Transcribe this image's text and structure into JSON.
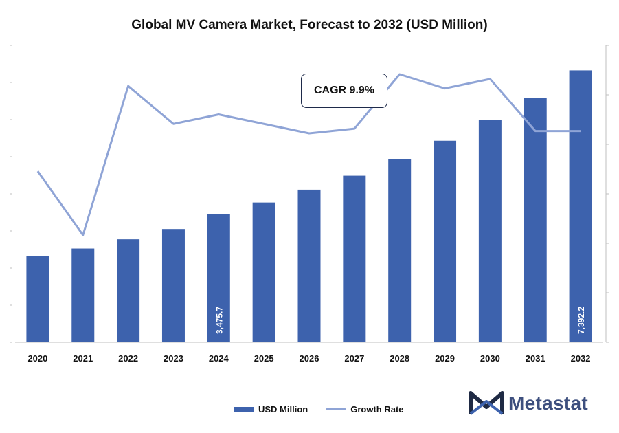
{
  "title": "Global MV Camera Market, Forecast to 2032 (USD Million)",
  "cagr_label": "CAGR 9.9%",
  "logo_text": "Metastat",
  "colors": {
    "bar": "#3d62ad",
    "line": "#8fa4d6",
    "axis": "#bfbfbf",
    "bar_label": "#ffffff"
  },
  "chart_data": {
    "type": "bar",
    "categories": [
      "2020",
      "2021",
      "2022",
      "2023",
      "2024",
      "2025",
      "2026",
      "2027",
      "2028",
      "2029",
      "2030",
      "2031",
      "2032"
    ],
    "ylim": [
      0,
      7400
    ],
    "series": [
      {
        "name": "USD Million",
        "type": "bar",
        "values": [
          2350,
          2550,
          2800,
          3080,
          3475.7,
          3800,
          4150,
          4530,
          4980,
          5480,
          6050,
          6650,
          7392.2
        ]
      },
      {
        "name": "Growth Rate",
        "type": "line",
        "values": [
          7.2,
          4.5,
          10.8,
          9.2,
          9.6,
          9.2,
          8.8,
          9.0,
          11.3,
          10.7,
          11.1,
          8.9,
          8.9
        ]
      }
    ],
    "data_labels": [
      {
        "category": "2024",
        "text": "3,475.7"
      },
      {
        "category": "2032",
        "text": "7,392.2"
      }
    ],
    "legend": {
      "position": "bottom",
      "entries": [
        "USD Million",
        "Growth Rate"
      ]
    }
  }
}
